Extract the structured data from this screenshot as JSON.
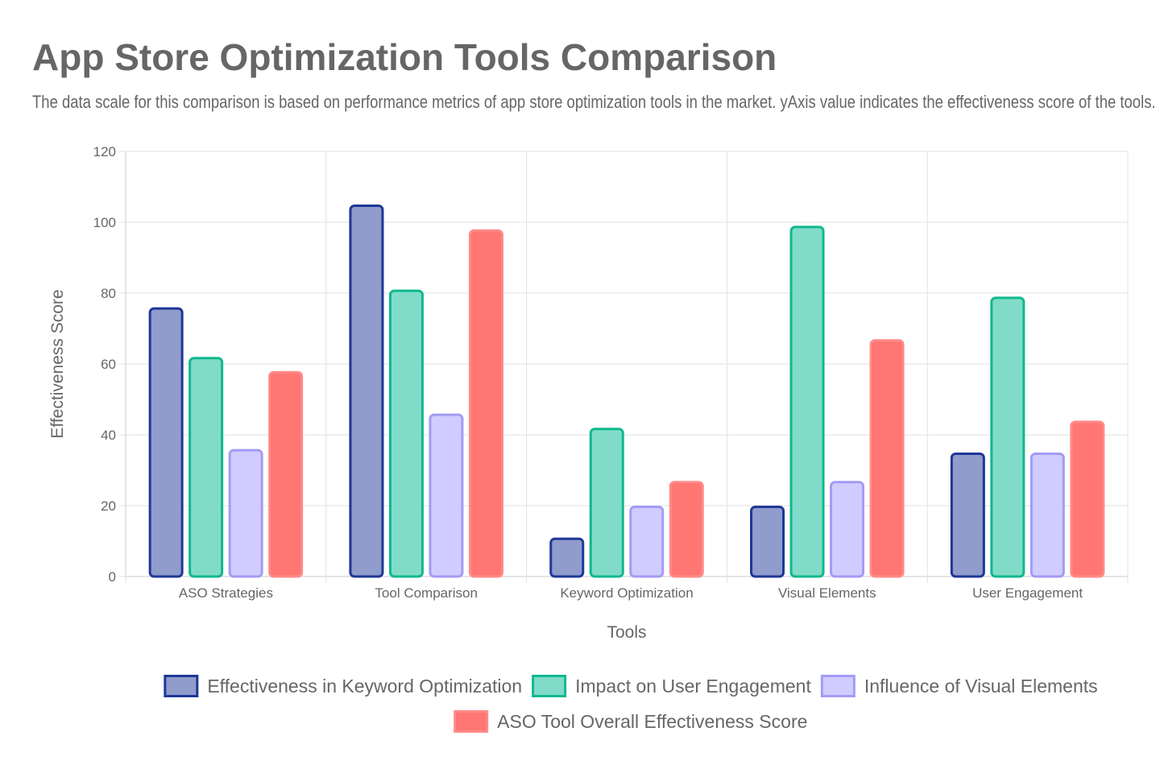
{
  "title": "App Store Optimization Tools Comparison",
  "subtitle": "The data scale for this comparison is based on performance metrics of app store optimization tools in the market. yAxis value indicates the effectiveness score of the tools.",
  "chart_data": {
    "type": "bar",
    "xlabel": "Tools",
    "ylabel": "Effectiveness Score",
    "ylim": [
      0,
      120
    ],
    "yticks": [
      0,
      20,
      40,
      60,
      80,
      100,
      120
    ],
    "grid": true,
    "legend": "bottom",
    "categories": [
      "ASO Strategies",
      "Tool Comparison",
      "Keyword Optimization",
      "Visual Elements",
      "User Engagement"
    ],
    "series": [
      {
        "name": "Effectiveness in Keyword Optimization",
        "values": [
          76,
          105,
          11,
          20,
          35
        ],
        "fill": "#8f9ccc",
        "border": "#1f3796"
      },
      {
        "name": "Impact on User Engagement",
        "values": [
          62,
          81,
          42,
          99,
          79
        ],
        "fill": "#80dcc8",
        "border": "#0fb88f"
      },
      {
        "name": "Influence of Visual Elements",
        "values": [
          36,
          46,
          20,
          27,
          35
        ],
        "fill": "#d0ccff",
        "border": "#a39bf5"
      },
      {
        "name": "ASO Tool Overall Effectiveness Score",
        "values": [
          58,
          98,
          27,
          67,
          44
        ],
        "fill": "#ff7673",
        "border": "#ff8a87"
      }
    ]
  }
}
